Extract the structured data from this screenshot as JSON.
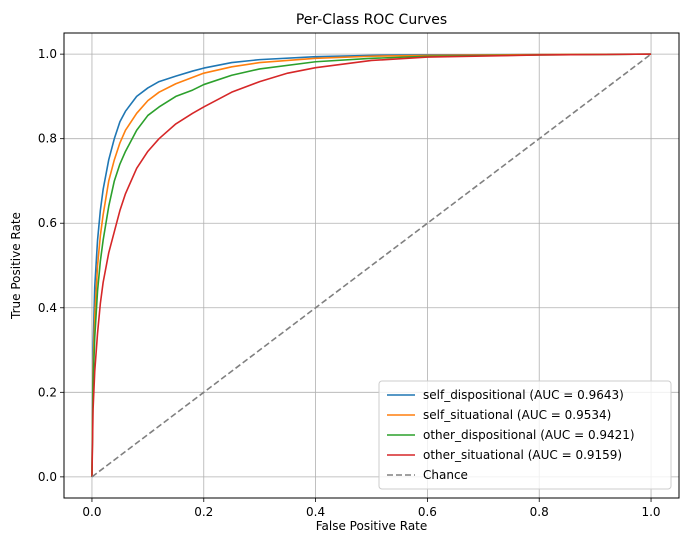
{
  "chart_data": {
    "type": "line",
    "title": "Per-Class ROC Curves",
    "xlabel": "False Positive Rate",
    "ylabel": "True Positive Rate",
    "xlim": [
      -0.05,
      1.05
    ],
    "ylim": [
      -0.05,
      1.05
    ],
    "x_ticks": [
      "0.0",
      "0.2",
      "0.4",
      "0.6",
      "0.8",
      "1.0"
    ],
    "y_ticks": [
      "0.0",
      "0.2",
      "0.4",
      "0.6",
      "0.8",
      "1.0"
    ],
    "grid": true,
    "legend_position": "bottom-right",
    "series": [
      {
        "name": "self_dispositional (AUC = 0.9643)",
        "color": "#1f77b4",
        "x": [
          0,
          0.002,
          0.005,
          0.01,
          0.015,
          0.02,
          0.03,
          0.04,
          0.05,
          0.06,
          0.08,
          0.1,
          0.12,
          0.15,
          0.18,
          0.2,
          0.25,
          0.3,
          0.4,
          0.5,
          0.6,
          0.8,
          1.0
        ],
        "y": [
          0,
          0.3,
          0.45,
          0.56,
          0.63,
          0.68,
          0.75,
          0.8,
          0.84,
          0.865,
          0.9,
          0.92,
          0.935,
          0.948,
          0.96,
          0.967,
          0.98,
          0.987,
          0.994,
          0.997,
          0.998,
          0.999,
          1.0
        ]
      },
      {
        "name": "self_situational (AUC = 0.9534)",
        "color": "#ff7f0e",
        "x": [
          0,
          0.002,
          0.005,
          0.01,
          0.015,
          0.02,
          0.03,
          0.04,
          0.05,
          0.06,
          0.08,
          0.1,
          0.12,
          0.15,
          0.18,
          0.2,
          0.25,
          0.3,
          0.4,
          0.5,
          0.6,
          0.8,
          1.0
        ],
        "y": [
          0,
          0.25,
          0.38,
          0.5,
          0.57,
          0.62,
          0.7,
          0.75,
          0.79,
          0.82,
          0.86,
          0.89,
          0.91,
          0.93,
          0.945,
          0.955,
          0.97,
          0.98,
          0.99,
          0.995,
          0.997,
          0.999,
          1.0
        ]
      },
      {
        "name": "other_dispositional (AUC = 0.9421)",
        "color": "#2ca02c",
        "x": [
          0,
          0.002,
          0.005,
          0.01,
          0.015,
          0.02,
          0.03,
          0.04,
          0.05,
          0.06,
          0.08,
          0.1,
          0.12,
          0.15,
          0.18,
          0.2,
          0.25,
          0.3,
          0.4,
          0.5,
          0.6,
          0.8,
          1.0
        ],
        "y": [
          0,
          0.22,
          0.33,
          0.44,
          0.51,
          0.56,
          0.64,
          0.7,
          0.74,
          0.77,
          0.82,
          0.855,
          0.875,
          0.9,
          0.915,
          0.928,
          0.95,
          0.965,
          0.982,
          0.99,
          0.995,
          0.998,
          1.0
        ]
      },
      {
        "name": "other_situational (AUC = 0.9159)",
        "color": "#d62728",
        "x": [
          0,
          0.002,
          0.005,
          0.01,
          0.015,
          0.02,
          0.03,
          0.04,
          0.05,
          0.06,
          0.08,
          0.1,
          0.12,
          0.15,
          0.18,
          0.2,
          0.25,
          0.3,
          0.35,
          0.4,
          0.5,
          0.6,
          0.8,
          1.0
        ],
        "y": [
          0,
          0.16,
          0.25,
          0.34,
          0.41,
          0.46,
          0.53,
          0.58,
          0.63,
          0.67,
          0.73,
          0.77,
          0.8,
          0.835,
          0.86,
          0.875,
          0.91,
          0.935,
          0.955,
          0.968,
          0.985,
          0.993,
          0.998,
          1.0
        ]
      },
      {
        "name": "Chance",
        "color": "#808080",
        "dashed": true,
        "x": [
          0,
          1
        ],
        "y": [
          0,
          1
        ]
      }
    ]
  }
}
